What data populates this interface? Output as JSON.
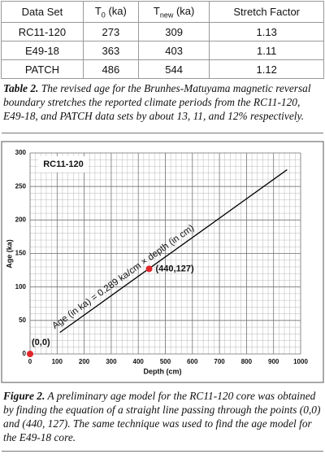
{
  "table": {
    "header": [
      "Data Set",
      {
        "symbol": "T",
        "sub": "0",
        "unit": "(ka)"
      },
      {
        "symbol": "T",
        "sub": "new",
        "unit": "(ka)"
      },
      "Stretch Factor"
    ],
    "rows": [
      [
        "RC11-120",
        273,
        309,
        1.13
      ],
      [
        "E49-18",
        363,
        403,
        1.11
      ],
      [
        "PATCH",
        486,
        544,
        1.12
      ]
    ]
  },
  "table_caption": {
    "label": "Table 2.",
    "text": "The revised age for the Brunhes-Matuyama magnetic reversal boundary stretches the reported climate periods from the RC11-120, E49-18, and PATCH data sets by about 13, 11, and 12% respectively."
  },
  "chart_data": {
    "type": "line",
    "inset_label": "RC11-120",
    "xlabel": "Depth (cm)",
    "ylabel": "Age (ka)",
    "annotation": "Age (in ka) = 0.289 ka/cm × depth (in cm)",
    "x": [
      110,
      950
    ],
    "values": [
      32,
      275
    ],
    "color": "#000000",
    "points": {
      "x": [
        0,
        440
      ],
      "values": [
        0,
        127
      ],
      "labels": [
        "(0,0)",
        "(440,127)"
      ],
      "color": "#e0262b"
    },
    "xlim": [
      0,
      1000
    ],
    "xticks": [
      0,
      100,
      200,
      300,
      400,
      500,
      600,
      700,
      800,
      900,
      1000
    ],
    "ylim": [
      0,
      300
    ],
    "yticks": [
      0,
      50,
      100,
      150,
      200,
      250,
      300
    ],
    "grid": true,
    "minor_xstep": 20,
    "minor_ystep": 10
  },
  "figure_caption": {
    "label": "Figure 2.",
    "text": "A preliminary age model for the RC11-120 core was obtained by finding the equation of a straight line passing through the points (0,0) and (440, 127). The same technique was used to find the age model for the E49-18 core."
  }
}
